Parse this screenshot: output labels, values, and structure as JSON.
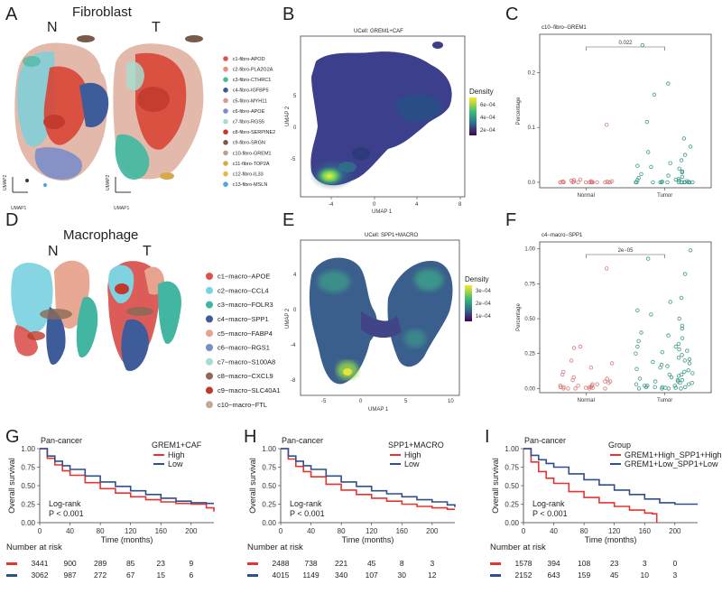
{
  "panel_letters": [
    "A",
    "B",
    "C",
    "D",
    "E",
    "F",
    "G",
    "H",
    "I"
  ],
  "fibroblast": {
    "title": "Fibroblast",
    "n_label": "N",
    "t_label": "T",
    "umap_x": "UMAP1",
    "umap_y": "UMAP2",
    "legend": [
      {
        "label": "c1-fibro-APOD",
        "color": "#d9534f"
      },
      {
        "label": "c2-fibro-PLA2G2A",
        "color": "#e8907e"
      },
      {
        "label": "c3-fibro-CTHRC1",
        "color": "#48b8a0"
      },
      {
        "label": "c4-fibro-IGFBP5",
        "color": "#3e5c9a"
      },
      {
        "label": "c5-fibro-MYH11",
        "color": "#d99b8a"
      },
      {
        "label": "c6-fibro-APOE",
        "color": "#7b8ec8"
      },
      {
        "label": "c7-fibro-RGS5",
        "color": "#a8dcd0"
      },
      {
        "label": "c8-fibro-SERPINE2",
        "color": "#c0392b"
      },
      {
        "label": "c9-fibro-SRGN",
        "color": "#7a5a48"
      },
      {
        "label": "c10-fibro-GREM1",
        "color": "#b9a28e"
      },
      {
        "label": "c11-fibro-TOP2A",
        "color": "#d6a94a"
      },
      {
        "label": "c12-fibro-IL33",
        "color": "#e6b84c"
      },
      {
        "label": "c13-fibro-MSLN",
        "color": "#4aa8e0"
      }
    ]
  },
  "macrophage": {
    "title": "Macrophage",
    "n_label": "N",
    "t_label": "T",
    "legend": [
      {
        "label": "c1−macro−APOE",
        "color": "#d9534f"
      },
      {
        "label": "c2−macro−CCL4",
        "color": "#7fd3e0"
      },
      {
        "label": "c3−macro−FOLR3",
        "color": "#43b6a2"
      },
      {
        "label": "c4−macro−SPP1",
        "color": "#3e5c9a"
      },
      {
        "label": "c5−macro−FABP4",
        "color": "#e8a38e"
      },
      {
        "label": "c6−macro−RGS1",
        "color": "#7b8ec8"
      },
      {
        "label": "c7−macro−S100A8",
        "color": "#a8dcd0"
      },
      {
        "label": "c8−macro−CXCL9",
        "color": "#8b6a55"
      },
      {
        "label": "c9−macro−SLC40A1",
        "color": "#c0392b"
      },
      {
        "label": "c10−macro−FTL",
        "color": "#c0ab98"
      }
    ]
  },
  "density_b": {
    "title": "UCell: GREM1+CAF",
    "xlabel": "UMAP 1",
    "ylabel": "UMAP 2",
    "xticks": [
      "-4",
      "0",
      "4",
      "8"
    ],
    "yticks": [
      "5",
      "0",
      "-5"
    ],
    "legend_title": "Density",
    "legend_ticks": [
      "6e−04",
      "4e−04",
      "2e−04"
    ]
  },
  "density_e": {
    "title": "UCell: SPP1+MACRO",
    "xlabel": "UMAP 1",
    "ylabel": "UMAP 2",
    "xticks": [
      "-5",
      "0",
      "5",
      "10"
    ],
    "yticks": [
      "4",
      "0",
      "-4",
      "-8"
    ],
    "legend_title": "Density",
    "legend_ticks": [
      "3e−04",
      "2e−04",
      "1e−04"
    ]
  },
  "chart_data": [
    {
      "type": "scatter",
      "panel": "C",
      "title": "c10−fibro−GREM1",
      "ylabel": "Percentage",
      "categories": [
        "Normal",
        "Tumor"
      ],
      "pvalue": "0.022",
      "ylim": [
        -0.01,
        0.27
      ],
      "yticks": [
        0.0,
        0.1,
        0.2
      ],
      "ytick_labels": [
        "0.0",
        "0.1",
        "0.2"
      ],
      "series": [
        {
          "name": "Normal",
          "color": "#d97a7a",
          "values": [
            0.105,
            0.005,
            0.004,
            0.003,
            0.002,
            0.002,
            0.001,
            0.001,
            0.001,
            0.001,
            0,
            0,
            0,
            0,
            0,
            0,
            0,
            0,
            0,
            0,
            0,
            0,
            0,
            0,
            0
          ]
        },
        {
          "name": "Tumor",
          "color": "#3a9a8a",
          "values": [
            0.25,
            0.18,
            0.16,
            0.11,
            0.08,
            0.065,
            0.055,
            0.05,
            0.04,
            0.035,
            0.03,
            0.028,
            0.025,
            0.02,
            0.018,
            0.015,
            0.012,
            0.01,
            0.008,
            0.006,
            0.005,
            0.004,
            0.003,
            0.002,
            0.001,
            0,
            0,
            0,
            0,
            0,
            0,
            0,
            0,
            0,
            0,
            0,
            0,
            0,
            0,
            0
          ]
        }
      ]
    },
    {
      "type": "scatter",
      "panel": "F",
      "title": "c4−macro−SPP1",
      "ylabel": "Percentage",
      "categories": [
        "Normal",
        "Tumor"
      ],
      "pvalue": "2e−05",
      "ylim": [
        -0.03,
        1.05
      ],
      "yticks": [
        0.0,
        0.25,
        0.5,
        0.75,
        1.0
      ],
      "ytick_labels": [
        "0.00",
        "0.25",
        "0.50",
        "0.75",
        "1.00"
      ],
      "series": [
        {
          "name": "Normal",
          "color": "#d97a7a",
          "values": [
            0.86,
            0.3,
            0.29,
            0.2,
            0.18,
            0.15,
            0.12,
            0.1,
            0.08,
            0.07,
            0.06,
            0.05,
            0.05,
            0.04,
            0.03,
            0.03,
            0.02,
            0.02,
            0.02,
            0.01,
            0.01,
            0.01,
            0.01,
            0.005,
            0.005,
            0,
            0,
            0,
            0,
            0
          ]
        },
        {
          "name": "Tumor",
          "color": "#3a9a8a",
          "values": [
            0.99,
            0.93,
            0.82,
            0.65,
            0.62,
            0.56,
            0.53,
            0.5,
            0.45,
            0.43,
            0.4,
            0.38,
            0.36,
            0.34,
            0.32,
            0.3,
            0.3,
            0.28,
            0.27,
            0.26,
            0.25,
            0.24,
            0.22,
            0.21,
            0.2,
            0.19,
            0.18,
            0.17,
            0.16,
            0.15,
            0.14,
            0.13,
            0.12,
            0.11,
            0.1,
            0.1,
            0.09,
            0.08,
            0.07,
            0.06,
            0.06,
            0.05,
            0.05,
            0.04,
            0.04,
            0.03,
            0.03,
            0.02,
            0.02,
            0.02,
            0.01,
            0.01,
            0.01,
            0.01,
            0.005,
            0.005,
            0,
            0,
            0,
            0
          ]
        }
      ]
    },
    {
      "type": "line",
      "panel": "G",
      "title": "Pan-cancer",
      "xlabel": "Time (months)",
      "ylabel": "Overall survival",
      "xlim": [
        0,
        230
      ],
      "ylim": [
        0,
        1
      ],
      "xticks": [
        0,
        40,
        80,
        120,
        160,
        200
      ],
      "yticks": [
        0,
        0.25,
        0.5,
        0.75,
        1.0
      ],
      "ytick_labels": [
        "0.00",
        "0.25",
        "0.50",
        "0.75",
        "1.00"
      ],
      "legend_title": "GREM1+CAF",
      "stat_lines": [
        "Log-rank",
        "P < 0.001"
      ],
      "series": [
        {
          "name": "High",
          "color": "#e8332f",
          "x": [
            0,
            10,
            20,
            30,
            40,
            60,
            80,
            100,
            120,
            140,
            160,
            180,
            200,
            220,
            230
          ],
          "y": [
            1,
            0.87,
            0.78,
            0.7,
            0.64,
            0.54,
            0.46,
            0.4,
            0.35,
            0.31,
            0.28,
            0.26,
            0.25,
            0.2,
            0.15
          ]
        },
        {
          "name": "Low",
          "color": "#2f4f8f",
          "x": [
            0,
            10,
            20,
            30,
            40,
            60,
            80,
            100,
            120,
            140,
            160,
            180,
            200,
            220,
            230
          ],
          "y": [
            1,
            0.9,
            0.83,
            0.77,
            0.72,
            0.63,
            0.55,
            0.49,
            0.43,
            0.38,
            0.33,
            0.29,
            0.27,
            0.26,
            0.26
          ]
        }
      ],
      "risk_table": {
        "title": "Number at risk",
        "times": [
          0,
          40,
          80,
          120,
          160,
          200
        ],
        "rows": [
          {
            "name": "High",
            "color": "#e8332f",
            "values": [
              "3441",
              "900",
              "289",
              "85",
              "23",
              "9"
            ]
          },
          {
            "name": "Low",
            "color": "#2f4f8f",
            "values": [
              "3062",
              "987",
              "272",
              "67",
              "15",
              "6"
            ]
          }
        ]
      }
    },
    {
      "type": "line",
      "panel": "H",
      "title": "Pan-cancer",
      "xlabel": "Time (months)",
      "ylabel": "Overall survival",
      "xlim": [
        0,
        230
      ],
      "ylim": [
        0,
        1
      ],
      "xticks": [
        0,
        40,
        80,
        120,
        160,
        200
      ],
      "yticks": [
        0,
        0.25,
        0.5,
        0.75,
        1.0
      ],
      "ytick_labels": [
        "0.00",
        "0.25",
        "0.50",
        "0.75",
        "1.00"
      ],
      "legend_title": "SPP1+MACRO",
      "stat_lines": [
        "Log-rank",
        "P < 0.001"
      ],
      "series": [
        {
          "name": "High",
          "color": "#e8332f",
          "x": [
            0,
            10,
            20,
            30,
            40,
            60,
            80,
            100,
            120,
            140,
            160,
            180,
            200,
            220,
            230
          ],
          "y": [
            1,
            0.86,
            0.76,
            0.69,
            0.62,
            0.52,
            0.44,
            0.38,
            0.33,
            0.29,
            0.25,
            0.22,
            0.2,
            0.18,
            0.18
          ]
        },
        {
          "name": "Low",
          "color": "#2f4f8f",
          "x": [
            0,
            10,
            20,
            30,
            40,
            60,
            80,
            100,
            120,
            140,
            160,
            180,
            200,
            220,
            230
          ],
          "y": [
            1,
            0.9,
            0.83,
            0.77,
            0.72,
            0.63,
            0.55,
            0.49,
            0.43,
            0.39,
            0.35,
            0.31,
            0.28,
            0.24,
            0.21
          ]
        }
      ],
      "risk_table": {
        "title": "Number at risk",
        "times": [
          0,
          40,
          80,
          120,
          160,
          200
        ],
        "rows": [
          {
            "name": "High",
            "color": "#e8332f",
            "values": [
              "2488",
              "738",
              "221",
              "45",
              "8",
              "3"
            ]
          },
          {
            "name": "Low",
            "color": "#2f4f8f",
            "values": [
              "4015",
              "1149",
              "340",
              "107",
              "30",
              "12"
            ]
          }
        ]
      }
    },
    {
      "type": "line",
      "panel": "I",
      "title": "Pan-cancer",
      "xlabel": "Time (months)",
      "ylabel": "Overall survival",
      "xlim": [
        0,
        230
      ],
      "ylim": [
        0,
        1
      ],
      "xticks": [
        0,
        40,
        80,
        120,
        160,
        200
      ],
      "yticks": [
        0,
        0.25,
        0.5,
        0.75,
        1.0
      ],
      "ytick_labels": [
        "0.00",
        "0.25",
        "0.50",
        "0.75",
        "1.00"
      ],
      "legend_title": "Group",
      "stat_lines": [
        "Log-rank",
        "P < 0.001"
      ],
      "series": [
        {
          "name": "GREM1+High_SPP1+High",
          "color": "#e8332f",
          "x": [
            0,
            10,
            20,
            30,
            40,
            60,
            80,
            100,
            120,
            140,
            160,
            170,
            175,
            176
          ],
          "y": [
            1,
            0.82,
            0.69,
            0.6,
            0.53,
            0.42,
            0.34,
            0.27,
            0.22,
            0.17,
            0.13,
            0.12,
            0.12,
            0.0
          ]
        },
        {
          "name": "GREM1+Low_SPP1+Low",
          "color": "#2f4f8f",
          "x": [
            0,
            10,
            20,
            30,
            40,
            60,
            80,
            100,
            120,
            140,
            160,
            180,
            200,
            230
          ],
          "y": [
            1,
            0.91,
            0.85,
            0.8,
            0.75,
            0.66,
            0.58,
            0.51,
            0.44,
            0.38,
            0.32,
            0.27,
            0.25,
            0.25
          ]
        }
      ],
      "risk_table": {
        "title": "Number at risk",
        "times": [
          0,
          40,
          80,
          120,
          160,
          200
        ],
        "rows": [
          {
            "name": "GREM1+High_SPP1+High",
            "color": "#e8332f",
            "values": [
              "1578",
              "394",
              "108",
              "23",
              "3",
              "0"
            ]
          },
          {
            "name": "GREM1+Low_SPP1+Low",
            "color": "#2f4f8f",
            "values": [
              "2152",
              "643",
              "159",
              "45",
              "10",
              "3"
            ]
          }
        ]
      }
    }
  ]
}
